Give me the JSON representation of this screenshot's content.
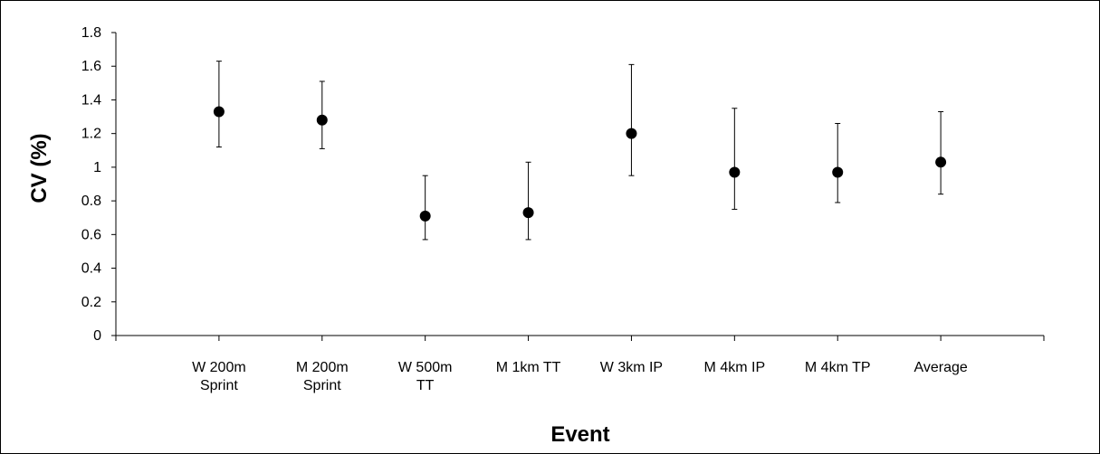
{
  "chart_data": {
    "type": "scatter",
    "xlabel": "Event",
    "ylabel": "CV (%)",
    "ylim": [
      0,
      1.8
    ],
    "y_ticks": [
      "0",
      "0.2",
      "0.4",
      "0.6",
      "0.8",
      "1",
      "1.2",
      "1.4",
      "1.6",
      "1.8"
    ],
    "grid": false,
    "legend": "none",
    "marker_color": "#000000",
    "categories": [
      [
        "W 200m",
        "Sprint"
      ],
      [
        "M 200m",
        "Sprint"
      ],
      [
        "W 500m",
        "TT"
      ],
      [
        "M 1km TT"
      ],
      [
        "W 3km IP"
      ],
      [
        "M 4km IP"
      ],
      [
        "M 4km TP"
      ],
      [
        "Average"
      ]
    ],
    "values": [
      1.33,
      1.28,
      0.71,
      0.73,
      1.2,
      0.97,
      0.97,
      1.03
    ],
    "error_low": [
      1.12,
      1.11,
      0.57,
      0.57,
      0.95,
      0.75,
      0.79,
      0.84
    ],
    "error_high": [
      1.63,
      1.51,
      0.95,
      1.03,
      1.61,
      1.35,
      1.26,
      1.33
    ]
  }
}
